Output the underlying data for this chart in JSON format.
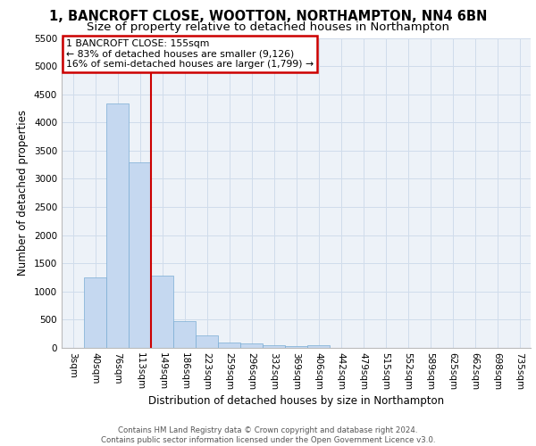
{
  "title1": "1, BANCROFT CLOSE, WOOTTON, NORTHAMPTON, NN4 6BN",
  "title2": "Size of property relative to detached houses in Northampton",
  "xlabel": "Distribution of detached houses by size in Northampton",
  "ylabel": "Number of detached properties",
  "footer1": "Contains HM Land Registry data © Crown copyright and database right 2024.",
  "footer2": "Contains public sector information licensed under the Open Government Licence v3.0.",
  "bin_labels": [
    "3sqm",
    "40sqm",
    "76sqm",
    "113sqm",
    "149sqm",
    "186sqm",
    "223sqm",
    "259sqm",
    "296sqm",
    "332sqm",
    "369sqm",
    "406sqm",
    "442sqm",
    "479sqm",
    "515sqm",
    "552sqm",
    "589sqm",
    "625sqm",
    "662sqm",
    "698sqm",
    "735sqm"
  ],
  "bar_heights": [
    0,
    1255,
    4340,
    3300,
    1280,
    475,
    225,
    100,
    80,
    55,
    30,
    55,
    0,
    0,
    0,
    0,
    0,
    0,
    0,
    0,
    0
  ],
  "bar_color": "#c5d8f0",
  "bar_edge_color": "#7aadd4",
  "red_line_x": 3.5,
  "annotation_line1": "1 BANCROFT CLOSE: 155sqm",
  "annotation_line2": "← 83% of detached houses are smaller (9,126)",
  "annotation_line3": "16% of semi-detached houses are larger (1,799) →",
  "red_line_color": "#cc0000",
  "ylim": [
    0,
    5500
  ],
  "yticks": [
    0,
    500,
    1000,
    1500,
    2000,
    2500,
    3000,
    3500,
    4000,
    4500,
    5000,
    5500
  ],
  "grid_color": "#d0dceb",
  "background_color": "#edf2f8",
  "title_fontsize": 10.5,
  "subtitle_fontsize": 9.5,
  "axis_label_fontsize": 8.5,
  "tick_fontsize": 7.5,
  "footer_fontsize": 6.2
}
